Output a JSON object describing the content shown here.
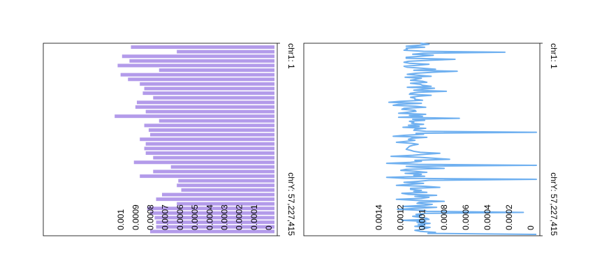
{
  "chart_data": [
    {
      "type": "bar",
      "orientation": "horizontal-bars-rotated",
      "color": "#b39bea",
      "value_axis_ticks": [
        "0",
        "0.0001",
        "0.0002",
        "0.0003",
        "0.0004",
        "0.0005",
        "0.0006",
        "0.0007",
        "0.0008",
        "0.0009",
        "0.001"
      ],
      "value_axis_ticks_numeric": [
        0,
        0.0001,
        0.0002,
        0.0003,
        0.0004,
        0.0005,
        0.0006,
        0.0007,
        0.0008,
        0.0009,
        0.001
      ],
      "vlim": [
        0,
        0.00118
      ],
      "genome_labels": [
        "chr1: 1",
        "chrY: 57,227,415"
      ],
      "values": [
        0.00097,
        0.00066,
        0.00103,
        0.00098,
        0.00106,
        0.00078,
        0.00104,
        0.00099,
        0.00091,
        0.00088,
        0.00089,
        0.00082,
        0.00093,
        0.00094,
        0.00087,
        0.00108,
        0.00078,
        0.00088,
        0.00085,
        0.00084,
        0.00091,
        0.00087,
        0.00088,
        0.00087,
        0.00082,
        0.00095,
        0.0007,
        0.00082,
        0.00091,
        0.00065,
        0.00066,
        0.00063,
        0.00076,
        0.0008,
        0.00066,
        0.00086,
        0.00084,
        0.00081,
        0.0008,
        0.0008,
        0.00084
      ]
    },
    {
      "type": "line",
      "orientation": "rotated",
      "color": "#6fb0f0",
      "value_axis_ticks": [
        "0",
        "0.0002",
        "0.0004",
        "0.0006",
        "0.0008",
        "0.001",
        "0.0012",
        "0.0014"
      ],
      "value_axis_ticks_numeric": [
        0,
        0.0002,
        0.0004,
        0.0006,
        0.0008,
        0.001,
        0.0012,
        0.0014
      ],
      "vlim": [
        0,
        0.00161
      ],
      "genome_labels": [
        "chr1: 1",
        "chrY: 57,227,415"
      ],
      "values": [
        0.00107,
        0.00099,
        0.00108,
        0.0012,
        0.00103,
        0.0012,
        0.00119,
        0.00122,
        0.00104,
        0.00029,
        0.00104,
        0.00114,
        0.00095,
        0.00106,
        0.0012,
        0.0012,
        0.00075,
        0.00098,
        0.00118,
        0.00122,
        0.00117,
        0.00099,
        0.00109,
        0.00122,
        0.00119,
        0.00105,
        0.00093,
        0.00113,
        0.00073,
        0.00096,
        0.00111,
        0.00119,
        0.00109,
        0.00097,
        0.00121,
        0.00106,
        0.00111,
        0.00116,
        0.00105,
        0.00101,
        0.00116,
        0.00107,
        0.00105,
        0.00097,
        0.00119,
        0.00094,
        0.00105,
        0.00113,
        0.00083,
        0.00109,
        0.00116,
        0.00117,
        0.00097,
        0.00109,
        0.00116,
        0.00112,
        0.00112,
        0.00105,
        0.00125,
        0.00136,
        0.00106,
        0.00127,
        0.00132,
        0.00111,
        0.00102,
        0.00122,
        0.00124,
        0.00112,
        0.00111,
        0.00119,
        0.00127,
        0.00102,
        0.00117,
        0.00105,
        0.00127,
        0.00071,
        0.00114,
        0.00103,
        0.00117,
        0.00113,
        0.00115,
        0.00104,
        0.00118,
        0.00108,
        0.00123,
        0.00102,
        0.00112,
        0.00113,
        0.00102,
        0.0,
        0.00111,
        0.00104,
        0.00122,
        0.00132,
        0.00101,
        0.00115,
        0.00118,
        0.00112,
        0.0012,
        0.00129,
        0.00115,
        0.00109,
        0.00114,
        0.00117,
        0.00118,
        0.00119,
        0.0012,
        0.00116,
        0.00113,
        0.00107,
        0.00089,
        0.00103,
        0.00114,
        0.00134,
        0.00108,
        0.00093,
        0.0008,
        0.00112,
        0.00106,
        0.00116,
        0.00138,
        0.00109,
        0.0,
        0.0012,
        0.0011,
        0.00085,
        0.0012,
        0.00125,
        0.00111,
        0.00101,
        0.00121,
        0.00106,
        0.00113,
        0.00103,
        0.00138,
        0.00122,
        0.0,
        0.00099,
        0.00109,
        0.00122,
        0.00104,
        0.00117,
        0.00129,
        0.00102,
        0.00089,
        0.00116,
        0.00116,
        0.00106,
        0.00113,
        0.00101,
        0.00124,
        0.00118,
        0.00092,
        0.00112,
        0.00099,
        0.00106,
        0.00129,
        0.00111,
        0.00085,
        0.00108,
        0.0011,
        0.00096,
        0.00103,
        0.00123,
        0.00092,
        0.00112,
        0.00128,
        0.00104,
        0.00101,
        0.00012,
        0.00103,
        0.00111,
        0.00106,
        0.00114,
        0.00107,
        0.00101,
        0.00099,
        0.00124,
        0.00102,
        0.0011,
        0.00098,
        0.00109,
        0.00103,
        0.00112,
        0.00098,
        0.00102,
        0.00106,
        0.00112,
        0.00107,
        0.00093,
        0.001,
        0.0
      ]
    }
  ]
}
